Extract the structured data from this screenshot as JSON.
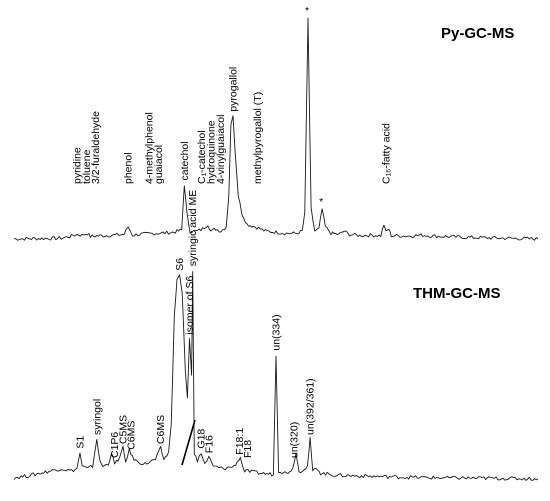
{
  "chart_data": [
    {
      "type": "line",
      "title": "Py-GC-MS",
      "xlabel": "",
      "ylabel": "",
      "grid": false,
      "legend": "none",
      "xlim": [
        0,
        100
      ],
      "ylim": [
        0,
        100
      ],
      "series": [
        {
          "points": [
            [
              0,
              0.5
            ],
            [
              9,
              0.8
            ],
            [
              11,
              1.8
            ],
            [
              12,
              2.5
            ],
            [
              13,
              2.2
            ],
            [
              14,
              3
            ],
            [
              14.6,
              1.6
            ],
            [
              15.5,
              1.8
            ],
            [
              17,
              2
            ],
            [
              19,
              2.2
            ],
            [
              21,
              2.5
            ],
            [
              21.8,
              6
            ],
            [
              22.6,
              2.2
            ],
            [
              24,
              2.6
            ],
            [
              25.5,
              2.8
            ],
            [
              27,
              3
            ],
            [
              28.5,
              3.2
            ],
            [
              30.5,
              3.5
            ],
            [
              32,
              4.5
            ],
            [
              32.5,
              25
            ],
            [
              33,
              12
            ],
            [
              33.6,
              4
            ],
            [
              35,
              4
            ],
            [
              36,
              5
            ],
            [
              37,
              7
            ],
            [
              37.6,
              4
            ],
            [
              38.5,
              5
            ],
            [
              39.5,
              4
            ],
            [
              40.5,
              6
            ],
            [
              41,
              20
            ],
            [
              41.4,
              52
            ],
            [
              41.8,
              56
            ],
            [
              42.2,
              40
            ],
            [
              42.8,
              20
            ],
            [
              43.5,
              12
            ],
            [
              44.5,
              7
            ],
            [
              46,
              6
            ],
            [
              47,
              5
            ],
            [
              48,
              4
            ],
            [
              50,
              3.5
            ],
            [
              52,
              3
            ],
            [
              54,
              3
            ],
            [
              55,
              4
            ],
            [
              55.5,
              12
            ],
            [
              56.1,
              100
            ],
            [
              56.7,
              14
            ],
            [
              57.4,
              4
            ],
            [
              58.2,
              5
            ],
            [
              58.8,
              14
            ],
            [
              59.4,
              6
            ],
            [
              60.5,
              3
            ],
            [
              62,
              2.5
            ],
            [
              63,
              4
            ],
            [
              64,
              2.5
            ],
            [
              66,
              2
            ],
            [
              68,
              2.2
            ],
            [
              70,
              2
            ],
            [
              70.6,
              7
            ],
            [
              71,
              3.5
            ],
            [
              71.5,
              5
            ],
            [
              72,
              2
            ],
            [
              75,
              1.8
            ],
            [
              78,
              2.2
            ],
            [
              80,
              1.8
            ],
            [
              83,
              1.5
            ],
            [
              86,
              1.2
            ],
            [
              90,
              1
            ],
            [
              94,
              0.8
            ],
            [
              100,
              0.5
            ]
          ]
        }
      ],
      "annotations": [
        {
          "text": "pyridine",
          "x": 12
        },
        {
          "text": "toluene",
          "x": 13.8
        },
        {
          "text": "3/2-furaldehyde",
          "x": 15.6
        },
        {
          "text": "phenol",
          "x": 21.8
        },
        {
          "text": "4-methylphenol",
          "x": 25.8
        },
        {
          "text": "guaiacol",
          "x": 27.6
        },
        {
          "text": "catechol",
          "x": 32.5
        },
        {
          "text": "C₁-catechol",
          "x": 35.8
        },
        {
          "text": "hydroquinone",
          "x": 37.6
        },
        {
          "text": "4-vinylguaiacol",
          "x": 39.4
        },
        {
          "text": "pyrogallol",
          "x": 41.8
        },
        {
          "text": "methylpyrogallol (T)",
          "x": 46.5
        },
        {
          "text": "*",
          "x": 56.1
        },
        {
          "text": "*",
          "x": 58.8
        },
        {
          "text": "C₁₆-fatty acid",
          "x": 71
        }
      ]
    },
    {
      "type": "line",
      "title": "THM-GC-MS",
      "xlabel": "",
      "ylabel": "",
      "grid": false,
      "legend": "none",
      "xlim": [
        0,
        100
      ],
      "ylim": [
        0,
        100
      ],
      "series": [
        {
          "points": [
            [
              0,
              1
            ],
            [
              3,
              2
            ],
            [
              5,
              3
            ],
            [
              7,
              4
            ],
            [
              9,
              5
            ],
            [
              11,
              4
            ],
            [
              12,
              5
            ],
            [
              12.6,
              12
            ],
            [
              13,
              6
            ],
            [
              14,
              5
            ],
            [
              15,
              6
            ],
            [
              15.8,
              18
            ],
            [
              16.4,
              8
            ],
            [
              17,
              6
            ],
            [
              18,
              7
            ],
            [
              18.6,
              12
            ],
            [
              19.2,
              7
            ],
            [
              20.2,
              10
            ],
            [
              20.8,
              14
            ],
            [
              21.3,
              8
            ],
            [
              22,
              13
            ],
            [
              22.6,
              10
            ],
            [
              23.5,
              8
            ],
            [
              25,
              7
            ],
            [
              26,
              8
            ],
            [
              27,
              9
            ],
            [
              28,
              14
            ],
            [
              28.6,
              9
            ],
            [
              29.5,
              12
            ],
            [
              30,
              24
            ],
            [
              30.6,
              72
            ],
            [
              31.1,
              88
            ],
            [
              31.6,
              90
            ],
            [
              32.1,
              82
            ],
            [
              32.7,
              48
            ],
            [
              33.1,
              36
            ],
            [
              33.5,
              62
            ],
            [
              33.9,
              46
            ],
            [
              34.1,
              92
            ],
            [
              34.4,
              12
            ],
            [
              35,
              8
            ],
            [
              35.7,
              12
            ],
            [
              36.4,
              7
            ],
            [
              37.2,
              10
            ],
            [
              38,
              6
            ],
            [
              40,
              5
            ],
            [
              42,
              6
            ],
            [
              43.2,
              10
            ],
            [
              43.6,
              6
            ],
            [
              44,
              4
            ],
            [
              47,
              3
            ],
            [
              49.5,
              2.5
            ],
            [
              50,
              55
            ],
            [
              50.5,
              4
            ],
            [
              52,
              3
            ],
            [
              53.2,
              5
            ],
            [
              53.8,
              12
            ],
            [
              54.4,
              3.5
            ],
            [
              56,
              6
            ],
            [
              56.5,
              18
            ],
            [
              57,
              4
            ],
            [
              58,
              5
            ],
            [
              58.5,
              3
            ],
            [
              62,
              2
            ],
            [
              66,
              1.8
            ],
            [
              70,
              1.5
            ],
            [
              75,
              1.2
            ],
            [
              80,
              1
            ],
            [
              90,
              0.8
            ],
            [
              100,
              0.5
            ]
          ]
        }
      ],
      "annotations": [
        {
          "text": "S1",
          "x": 12.6
        },
        {
          "text": "syringol",
          "x": 15.8
        },
        {
          "text": "C1P6",
          "x": 19.2
        },
        {
          "text": "C5MS",
          "x": 20.8
        },
        {
          "text": "C6MS",
          "x": 22.3
        },
        {
          "text": "C6MS",
          "x": 28
        },
        {
          "text": "S6",
          "x": 31.6
        },
        {
          "text": "syringic acid ME",
          "x": 34.1
        },
        {
          "text": "isomer of S6",
          "x": 33.5
        },
        {
          "text": "G18",
          "x": 35.7
        },
        {
          "text": "F16",
          "x": 37.2
        },
        {
          "text": "F18:1",
          "x": 43
        },
        {
          "text": "F18",
          "x": 44.6
        },
        {
          "text": "un(334)",
          "x": 50
        },
        {
          "text": "un(320)",
          "x": 53.4
        },
        {
          "text": "un(392/361)",
          "x": 56.5
        }
      ]
    }
  ]
}
